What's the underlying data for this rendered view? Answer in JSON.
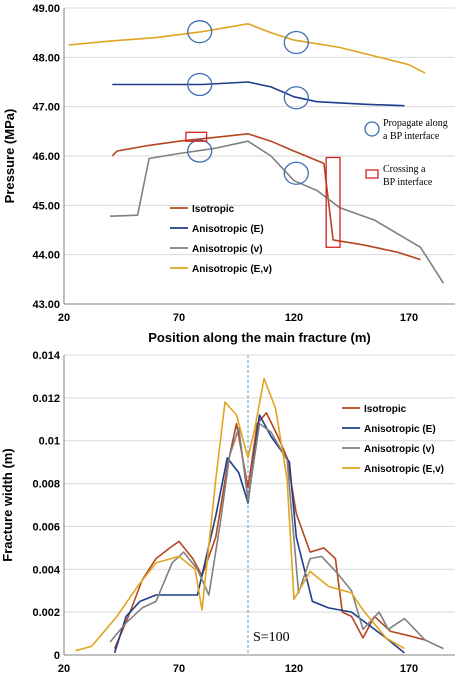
{
  "colors": {
    "Isotropic": "#b5461e",
    "Anisotropic (E)": "#1f3c8c",
    "Anisotropic (v)": "#808080",
    "Anisotropic (E,v)": "#e0a420",
    "circle": "#3d6fb0",
    "rect": "#d62020",
    "sline": "#5b9bd5"
  },
  "chart_data": [
    {
      "type": "line",
      "xlabel": "Position along the main fracture (m)",
      "ylabel": "Pressure (MPa)",
      "xlim": [
        20,
        190
      ],
      "ylim": [
        43,
        49
      ],
      "xticks": [
        20,
        70,
        120,
        170
      ],
      "yticks": [
        "43.00",
        "44.00",
        "45.00",
        "46.00",
        "47.00",
        "48.00",
        "49.00"
      ],
      "legend_position": "lower-left",
      "series": [
        {
          "name": "Isotropic",
          "x": [
            41,
            43,
            55,
            70,
            90,
            100,
            110,
            120,
            133,
            137,
            150,
            165,
            175
          ],
          "y": [
            46.0,
            46.1,
            46.2,
            46.3,
            46.4,
            46.45,
            46.3,
            46.1,
            45.85,
            44.3,
            44.2,
            44.05,
            43.9
          ]
        },
        {
          "name": "Anisotropic (E)",
          "x": [
            41,
            80,
            100,
            110,
            120,
            130,
            150,
            168
          ],
          "y": [
            47.45,
            47.45,
            47.5,
            47.4,
            47.2,
            47.1,
            47.05,
            47.02
          ]
        },
        {
          "name": "Anisotropic (v)",
          "x": [
            40,
            52,
            57,
            70,
            85,
            100,
            110,
            120,
            130,
            140,
            155,
            175,
            185
          ],
          "y": [
            44.78,
            44.8,
            45.95,
            46.05,
            46.15,
            46.3,
            46.0,
            45.5,
            45.3,
            44.95,
            44.7,
            44.15,
            43.42
          ]
        },
        {
          "name": "Anisotropic (E,v)",
          "x": [
            22,
            40,
            60,
            80,
            100,
            110,
            120,
            140,
            170,
            177
          ],
          "y": [
            48.25,
            48.33,
            48.4,
            48.52,
            48.68,
            48.5,
            48.35,
            48.2,
            47.85,
            47.68
          ]
        }
      ],
      "annotations": {
        "circles": [
          {
            "x": 79,
            "y": 48.52
          },
          {
            "x": 121,
            "y": 48.3
          },
          {
            "x": 79,
            "y": 47.45
          },
          {
            "x": 121,
            "y": 47.18
          },
          {
            "x": 79,
            "y": 46.1
          },
          {
            "x": 121,
            "y": 45.65
          }
        ],
        "rects": [
          {
            "x0": 73,
            "x1": 82,
            "y0": 46.3,
            "y1": 46.48
          },
          {
            "x0": 134,
            "x1": 140,
            "y0": 44.15,
            "y1": 45.97
          }
        ],
        "notes": [
          {
            "kind": "circle",
            "lines": [
              "Propagate along",
              "a BP interface"
            ]
          },
          {
            "kind": "rect",
            "lines": [
              "Crossing a",
              "BP interface"
            ]
          }
        ]
      }
    },
    {
      "type": "line",
      "xlabel": "",
      "ylabel": "Fracture width (m)",
      "xlim": [
        20,
        190
      ],
      "ylim": [
        0,
        0.014
      ],
      "xticks": [
        20,
        70,
        120,
        170
      ],
      "yticks": [
        "0",
        "0.002",
        "0.004",
        "0.006",
        "0.008",
        "0.01",
        "0.012",
        "0.014"
      ],
      "legend_position": "right",
      "vline": {
        "x": 100,
        "label": "S=100"
      },
      "series": [
        {
          "name": "Isotropic",
          "x": [
            42,
            48,
            54,
            60,
            66,
            70,
            76,
            80,
            86,
            91,
            95,
            100,
            104,
            108,
            113,
            117,
            121,
            127,
            133,
            138,
            141,
            145,
            150,
            155,
            162,
            170,
            177
          ],
          "y": [
            0.0003,
            0.0018,
            0.0035,
            0.0045,
            0.005,
            0.0053,
            0.0045,
            0.0037,
            0.0055,
            0.0088,
            0.0108,
            0.0078,
            0.0108,
            0.0113,
            0.0102,
            0.0092,
            0.0066,
            0.0048,
            0.005,
            0.0045,
            0.002,
            0.0018,
            0.0008,
            0.0018,
            0.0011,
            0.0009,
            0.0007
          ]
        },
        {
          "name": "Anisotropic (E)",
          "x": [
            42,
            47,
            53,
            60,
            70,
            78,
            86,
            91,
            96,
            100,
            105,
            110,
            118,
            121,
            128,
            135,
            145,
            160,
            168
          ],
          "y": [
            0.0001,
            0.0018,
            0.0025,
            0.0028,
            0.0028,
            0.0028,
            0.0065,
            0.0092,
            0.0085,
            0.0071,
            0.0112,
            0.0102,
            0.009,
            0.0055,
            0.0025,
            0.0022,
            0.002,
            0.0008,
            0.0001
          ]
        },
        {
          "name": "Anisotropic (v)",
          "x": [
            40,
            47,
            54,
            60,
            67,
            72,
            78,
            83,
            88,
            92,
            96,
            100,
            105,
            110,
            117,
            122,
            127,
            132,
            139,
            145,
            150,
            157,
            161,
            168,
            177,
            185
          ],
          "y": [
            0.0006,
            0.0015,
            0.0022,
            0.0025,
            0.0043,
            0.0048,
            0.004,
            0.0028,
            0.0062,
            0.0093,
            0.0106,
            0.0072,
            0.0108,
            0.0104,
            0.0091,
            0.0029,
            0.0045,
            0.0046,
            0.0038,
            0.003,
            0.0012,
            0.002,
            0.0012,
            0.0017,
            0.0007,
            0.0003
          ]
        },
        {
          "name": "Anisotropic (E,v)",
          "x": [
            25,
            32,
            43,
            52,
            60,
            70,
            77,
            80,
            86,
            90,
            95,
            100,
            103,
            107,
            112,
            117,
            120,
            127,
            135,
            145,
            150,
            160,
            168
          ],
          "y": [
            0.0002,
            0.0004,
            0.0018,
            0.0032,
            0.0043,
            0.0046,
            0.004,
            0.0021,
            0.0082,
            0.0118,
            0.0112,
            0.0092,
            0.0106,
            0.0129,
            0.0115,
            0.0082,
            0.0026,
            0.0039,
            0.0032,
            0.0029,
            0.0021,
            0.0008,
            0.0003
          ]
        }
      ]
    }
  ]
}
